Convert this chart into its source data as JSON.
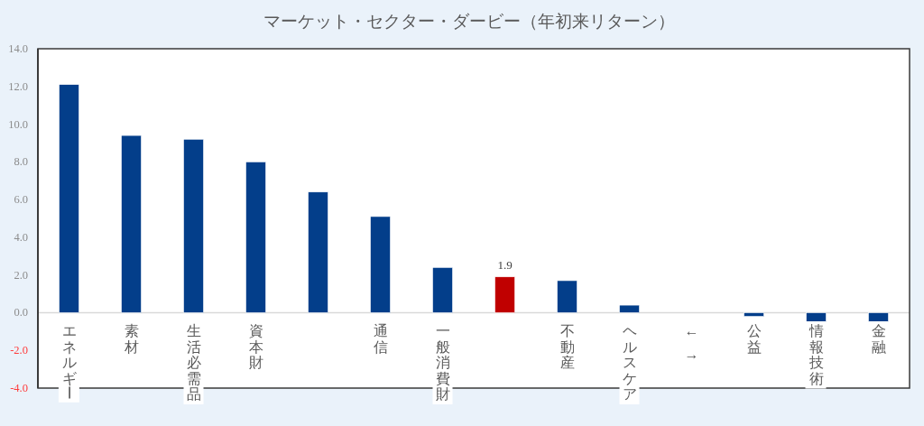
{
  "chart_data": {
    "type": "bar",
    "title": "マーケット・セクター・ダービー（年初来リターン）",
    "categories": [
      "エネルギー",
      "素材",
      "生活必需品",
      "資本財",
      null,
      "通信",
      "一般消費財",
      null,
      "不動産",
      "ヘルスケア",
      "← →",
      "公益",
      "情報技術",
      "金融"
    ],
    "values": [
      12.1,
      9.4,
      9.2,
      8.0,
      6.4,
      5.1,
      2.4,
      1.9,
      1.7,
      0.4,
      null,
      -0.2,
      -0.5,
      -0.5
    ],
    "colors": [
      "#033e8a",
      "#033e8a",
      "#033e8a",
      "#033e8a",
      "#033e8a",
      "#033e8a",
      "#033e8a",
      "#c00000",
      "#033e8a",
      "#033e8a",
      null,
      "#033e8a",
      "#033e8a",
      "#033e8a"
    ],
    "value_labels": [
      null,
      null,
      null,
      null,
      null,
      null,
      null,
      "1.9",
      null,
      null,
      null,
      null,
      null,
      null
    ],
    "ylim": [
      -4,
      14
    ],
    "yticks": [
      {
        "value": -4,
        "label": "-4.0"
      },
      {
        "value": -2,
        "label": "-2.0"
      },
      {
        "value": 0,
        "label": "0.0"
      },
      {
        "value": 2,
        "label": "2.0"
      },
      {
        "value": 4,
        "label": "4.0"
      },
      {
        "value": 6,
        "label": "6.0"
      },
      {
        "value": 8,
        "label": "8.0"
      },
      {
        "value": 10,
        "label": "10.0"
      },
      {
        "value": 12,
        "label": "12.0"
      },
      {
        "value": 14,
        "label": "14.0"
      }
    ]
  }
}
